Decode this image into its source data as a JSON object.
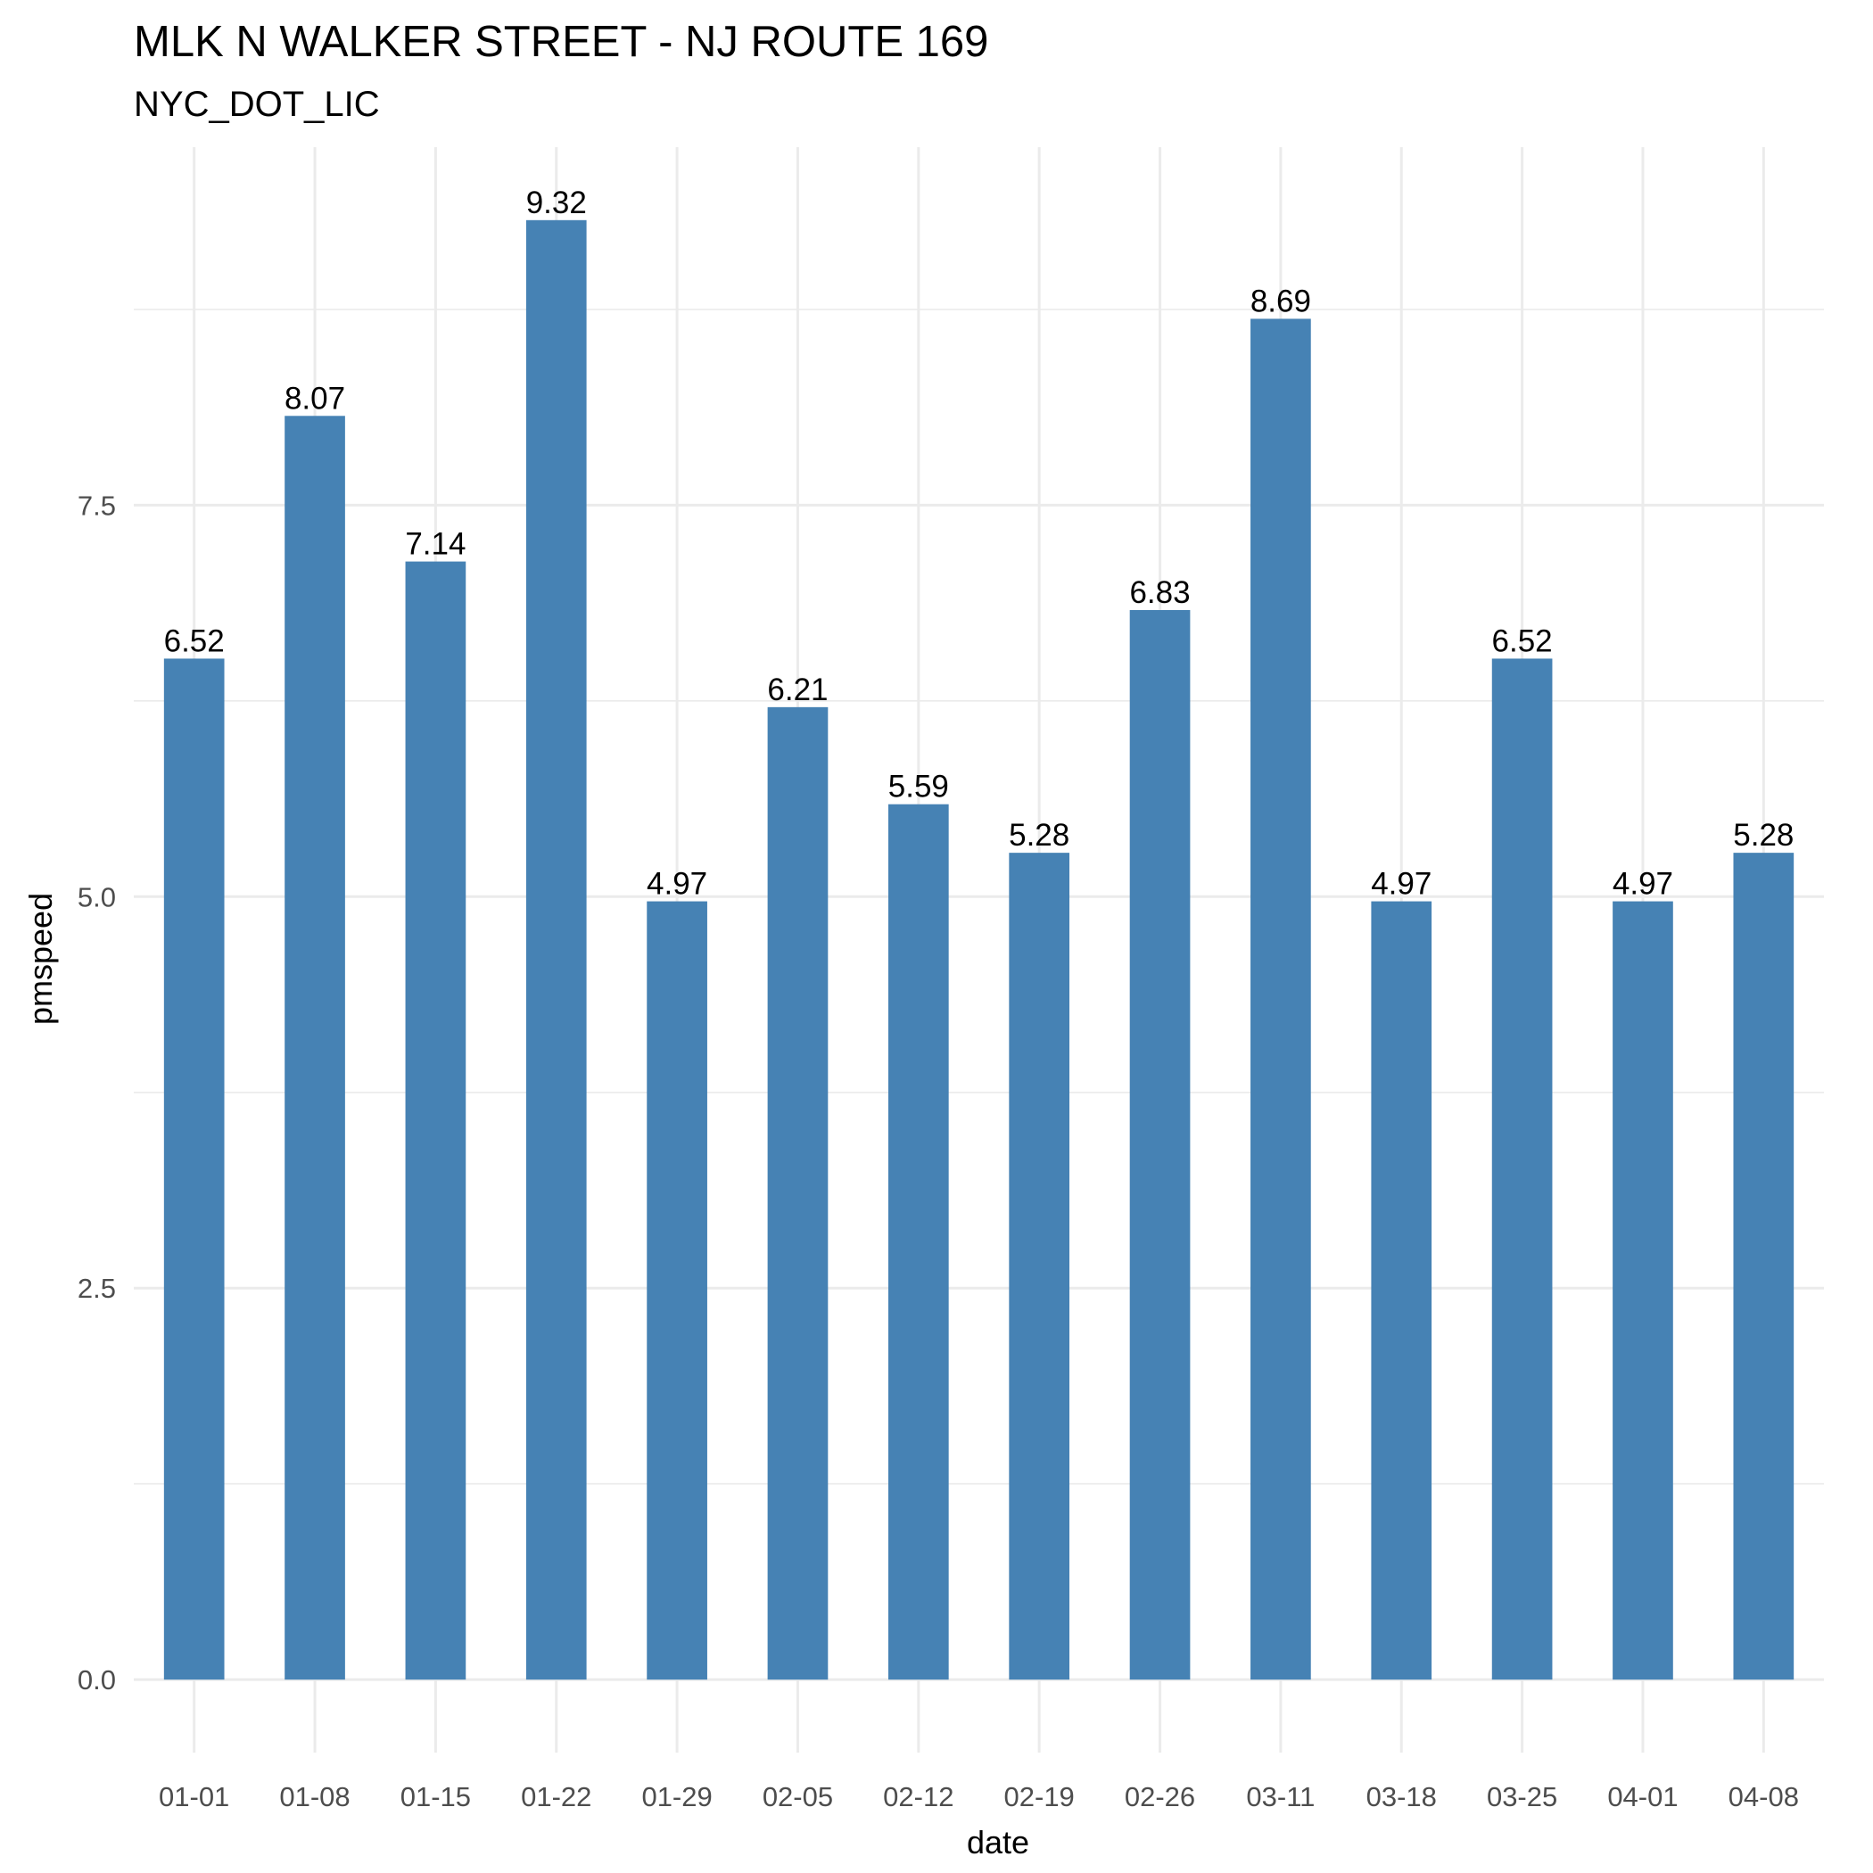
{
  "chart_data": {
    "type": "bar",
    "title": "MLK N WALKER STREET - NJ ROUTE 169",
    "subtitle": "NYC_DOT_LIC",
    "xlabel": "date",
    "ylabel": "pmspeed",
    "categories": [
      "01-01",
      "01-08",
      "01-15",
      "01-22",
      "01-29",
      "02-05",
      "02-12",
      "02-19",
      "02-26",
      "03-11",
      "03-18",
      "03-25",
      "04-01",
      "04-08"
    ],
    "values": [
      6.52,
      8.07,
      7.14,
      9.32,
      4.97,
      6.21,
      5.59,
      5.28,
      6.83,
      8.69,
      4.97,
      6.52,
      4.97,
      5.28
    ],
    "data_labels": [
      "6.52",
      "8.07",
      "7.14",
      "9.32",
      "4.97",
      "6.21",
      "5.59",
      "5.28",
      "6.83",
      "8.69",
      "4.97",
      "6.52",
      "4.97",
      "5.28"
    ],
    "y_ticks": [
      0,
      2.5,
      5,
      7.5
    ],
    "y_tick_labels": [
      "0.0",
      "2.5",
      "5.0",
      "7.5"
    ],
    "ylim": [
      -0.466,
      9.786
    ],
    "grid": true,
    "legend": "none",
    "bar_color": "#4682b4"
  }
}
